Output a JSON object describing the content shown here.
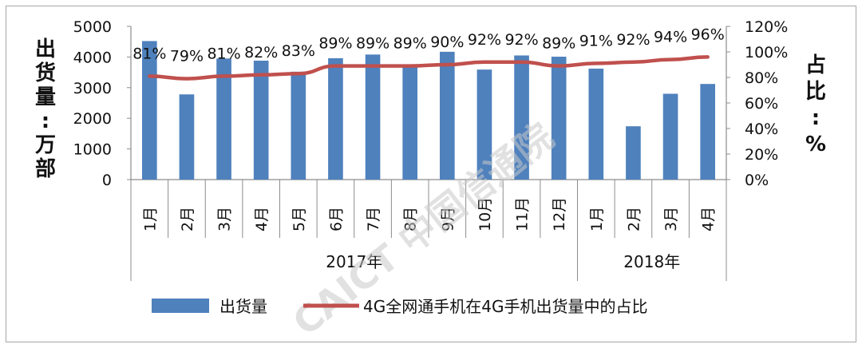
{
  "chart_data": {
    "type": "bar",
    "categories": [
      "1月",
      "2月",
      "3月",
      "4月",
      "5月",
      "6月",
      "7月",
      "8月",
      "9月",
      "10月",
      "11月",
      "12月",
      "1月",
      "2月",
      "3月",
      "4月"
    ],
    "groups": [
      {
        "label": "2017年",
        "start": 0,
        "end": 11
      },
      {
        "label": "2018年",
        "start": 12,
        "end": 15
      }
    ],
    "series": [
      {
        "name": "出货量",
        "type": "bar",
        "axis": "left",
        "color": "#4f81bd",
        "values": [
          4520,
          2780,
          3950,
          3880,
          3520,
          3960,
          4080,
          3720,
          4170,
          3590,
          4050,
          4010,
          3620,
          1740,
          2800,
          3120
        ]
      },
      {
        "name": "4G全网通手机在4G手机出货量中的占比",
        "type": "line",
        "axis": "right",
        "color": "#c0504d",
        "values": [
          81,
          79,
          81,
          82,
          83,
          89,
          89,
          89,
          90,
          92,
          92,
          89,
          91,
          92,
          94,
          96
        ],
        "labels": [
          "81%",
          "79%",
          "81%",
          "82%",
          "83%",
          "89%",
          "89%",
          "89%",
          "90%",
          "92%",
          "92%",
          "89%",
          "91%",
          "92%",
          "94%",
          "96%"
        ]
      }
    ],
    "y_left": {
      "label": "出货量：万部",
      "min": 0,
      "max": 5000,
      "ticks": [
        "0",
        "1000",
        "2000",
        "3000",
        "4000",
        "5000"
      ]
    },
    "y_right": {
      "label": "占比：%",
      "min": 0,
      "max": 120,
      "ticks": [
        "0%",
        "20%",
        "40%",
        "60%",
        "80%",
        "100%",
        "120%"
      ]
    },
    "watermark": "CAICT 中国信通院",
    "legend_position": "bottom"
  }
}
